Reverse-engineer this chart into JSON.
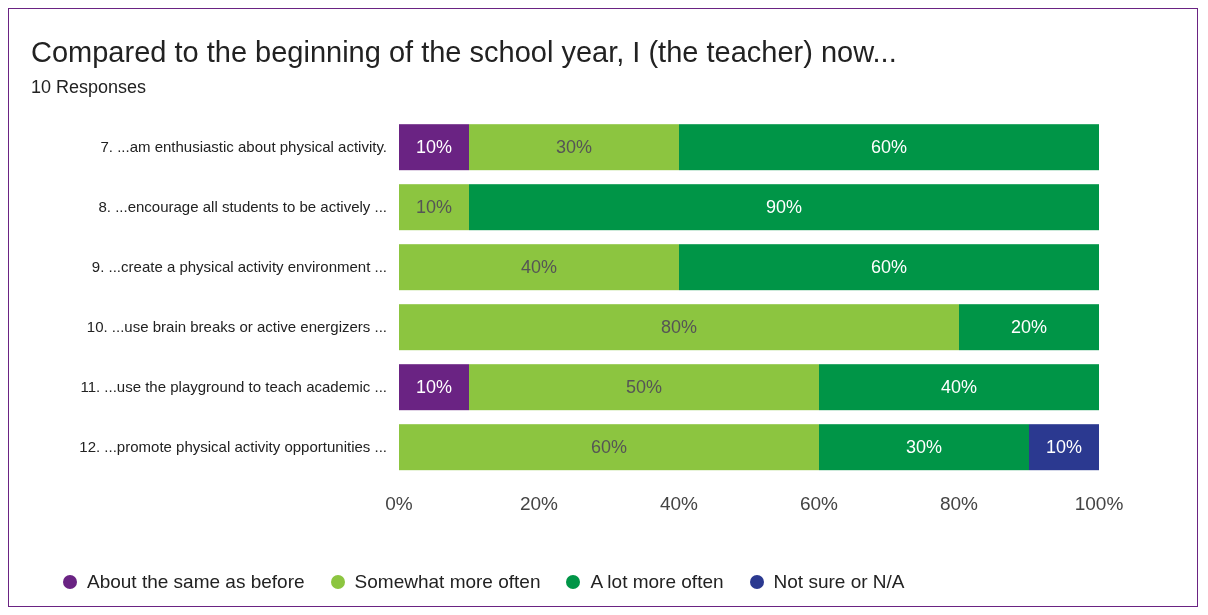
{
  "chart_data": {
    "type": "bar",
    "orientation": "horizontal",
    "stacked": true,
    "title": "Compared to the beginning of the school year, I (the teacher) now...",
    "subtitle": "10 Responses",
    "categories": [
      "7. ...am enthusiastic about physical activity.",
      "8. ...encourage all students to be actively ...",
      "9. ...create a physical activity environment ...",
      "10. ...use brain breaks or active energizers ...",
      "11. ...use the playground to teach academic ...",
      "12. ...promote physical activity opportunities ..."
    ],
    "series": [
      {
        "name": "About the same as before",
        "color": "#6a2383",
        "values": [
          10,
          null,
          null,
          null,
          10,
          null
        ],
        "value_labels": [
          "10%",
          null,
          null,
          null,
          "10%",
          null
        ]
      },
      {
        "name": "Somewhat more often",
        "color": "#8cc540",
        "values": [
          30,
          10,
          40,
          80,
          50,
          60
        ],
        "value_labels": [
          "30%",
          "10%",
          "40%",
          "80%",
          "50%",
          "60%"
        ]
      },
      {
        "name": "A lot more often",
        "color": "#009547",
        "values": [
          60,
          90,
          60,
          20,
          40,
          30
        ],
        "value_labels": [
          "60%",
          "90%",
          "60%",
          "20%",
          "40%",
          "30%"
        ]
      },
      {
        "name": "Not sure or N/A",
        "color": "#2b3990",
        "values": [
          null,
          null,
          null,
          null,
          null,
          10
        ],
        "value_labels": [
          null,
          null,
          null,
          null,
          null,
          "10%"
        ]
      }
    ],
    "xlim": [
      0,
      100
    ],
    "xticks": [
      {
        "value": 0,
        "label": "0%"
      },
      {
        "value": 20,
        "label": "20%"
      },
      {
        "value": 40,
        "label": "40%"
      },
      {
        "value": 60,
        "label": "60%"
      },
      {
        "value": 80,
        "label": "80%"
      },
      {
        "value": 100,
        "label": "100%"
      }
    ],
    "grid": false,
    "legend": "bottom",
    "marker": "circle"
  }
}
